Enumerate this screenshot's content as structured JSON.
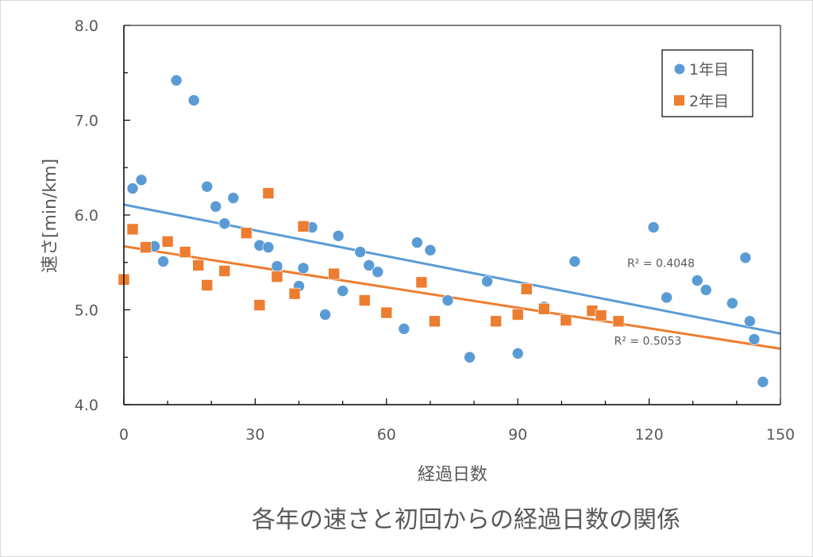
{
  "chart_data": {
    "type": "scatter",
    "title": "各年の速さと初回からの経過日数の関係",
    "xlabel": "経過日数",
    "ylabel": "速さ[min/km]",
    "xlim": [
      0,
      150
    ],
    "ylim": [
      4.0,
      8.0
    ],
    "x_major_ticks": [
      0,
      30,
      60,
      90,
      120,
      150
    ],
    "x_tick_labels": [
      "0",
      "30",
      "60",
      "90",
      "120",
      "150"
    ],
    "x_minor_step": 10,
    "y_major_ticks": [
      4.0,
      5.0,
      6.0,
      7.0,
      8.0
    ],
    "y_tick_labels": [
      "4.0",
      "5.0",
      "6.0",
      "7.0",
      "8.0"
    ],
    "y_minor_step": 0.5,
    "grid": false,
    "legend_position": "top-right",
    "series": [
      {
        "name": "1年目",
        "marker": "circle",
        "color": "#5b9bd5",
        "points": [
          [
            2,
            6.28
          ],
          [
            4,
            6.37
          ],
          [
            7,
            5.67
          ],
          [
            9,
            5.51
          ],
          [
            12,
            7.42
          ],
          [
            16,
            7.21
          ],
          [
            19,
            6.3
          ],
          [
            21,
            6.09
          ],
          [
            23,
            5.91
          ],
          [
            25,
            6.18
          ],
          [
            31,
            5.68
          ],
          [
            33,
            5.66
          ],
          [
            35,
            5.46
          ],
          [
            40,
            5.25
          ],
          [
            41,
            5.44
          ],
          [
            43,
            5.87
          ],
          [
            46,
            4.95
          ],
          [
            49,
            5.78
          ],
          [
            50,
            5.2
          ],
          [
            54,
            5.61
          ],
          [
            56,
            5.47
          ],
          [
            58,
            5.4
          ],
          [
            64,
            4.8
          ],
          [
            67,
            5.71
          ],
          [
            70,
            5.63
          ],
          [
            74,
            5.1
          ],
          [
            79,
            4.5
          ],
          [
            83,
            5.3
          ],
          [
            90,
            4.54
          ],
          [
            96,
            5.03
          ],
          [
            103,
            5.51
          ],
          [
            121,
            5.87
          ],
          [
            124,
            5.13
          ],
          [
            131,
            5.31
          ],
          [
            133,
            5.21
          ],
          [
            139,
            5.07
          ],
          [
            142,
            5.55
          ],
          [
            143,
            4.88
          ],
          [
            144,
            4.69
          ],
          [
            146,
            4.24
          ]
        ],
        "trendline": {
          "type": "linear",
          "y_at_x0": 6.11,
          "y_at_x150": 4.75,
          "r2_label": "R² = 0.4048",
          "label_at": [
            115,
            5.45
          ]
        }
      },
      {
        "name": "2年目",
        "marker": "square",
        "color": "#ed7d31",
        "points": [
          [
            0,
            5.32
          ],
          [
            2,
            5.85
          ],
          [
            5,
            5.66
          ],
          [
            10,
            5.72
          ],
          [
            14,
            5.61
          ],
          [
            17,
            5.47
          ],
          [
            19,
            5.26
          ],
          [
            23,
            5.41
          ],
          [
            28,
            5.81
          ],
          [
            31,
            5.05
          ],
          [
            33,
            6.23
          ],
          [
            35,
            5.35
          ],
          [
            39,
            5.17
          ],
          [
            41,
            5.88
          ],
          [
            48,
            5.38
          ],
          [
            55,
            5.1
          ],
          [
            60,
            4.97
          ],
          [
            68,
            5.29
          ],
          [
            71,
            4.88
          ],
          [
            85,
            4.88
          ],
          [
            90,
            4.95
          ],
          [
            92,
            5.22
          ],
          [
            96,
            5.01
          ],
          [
            101,
            4.89
          ],
          [
            107,
            4.99
          ],
          [
            109,
            4.94
          ],
          [
            113,
            4.88
          ]
        ],
        "trendline": {
          "type": "linear",
          "y_at_x0": 5.67,
          "y_at_x150": 4.59,
          "r2_label": "R² = 0.5053",
          "label_at": [
            112,
            4.63
          ]
        }
      }
    ]
  }
}
